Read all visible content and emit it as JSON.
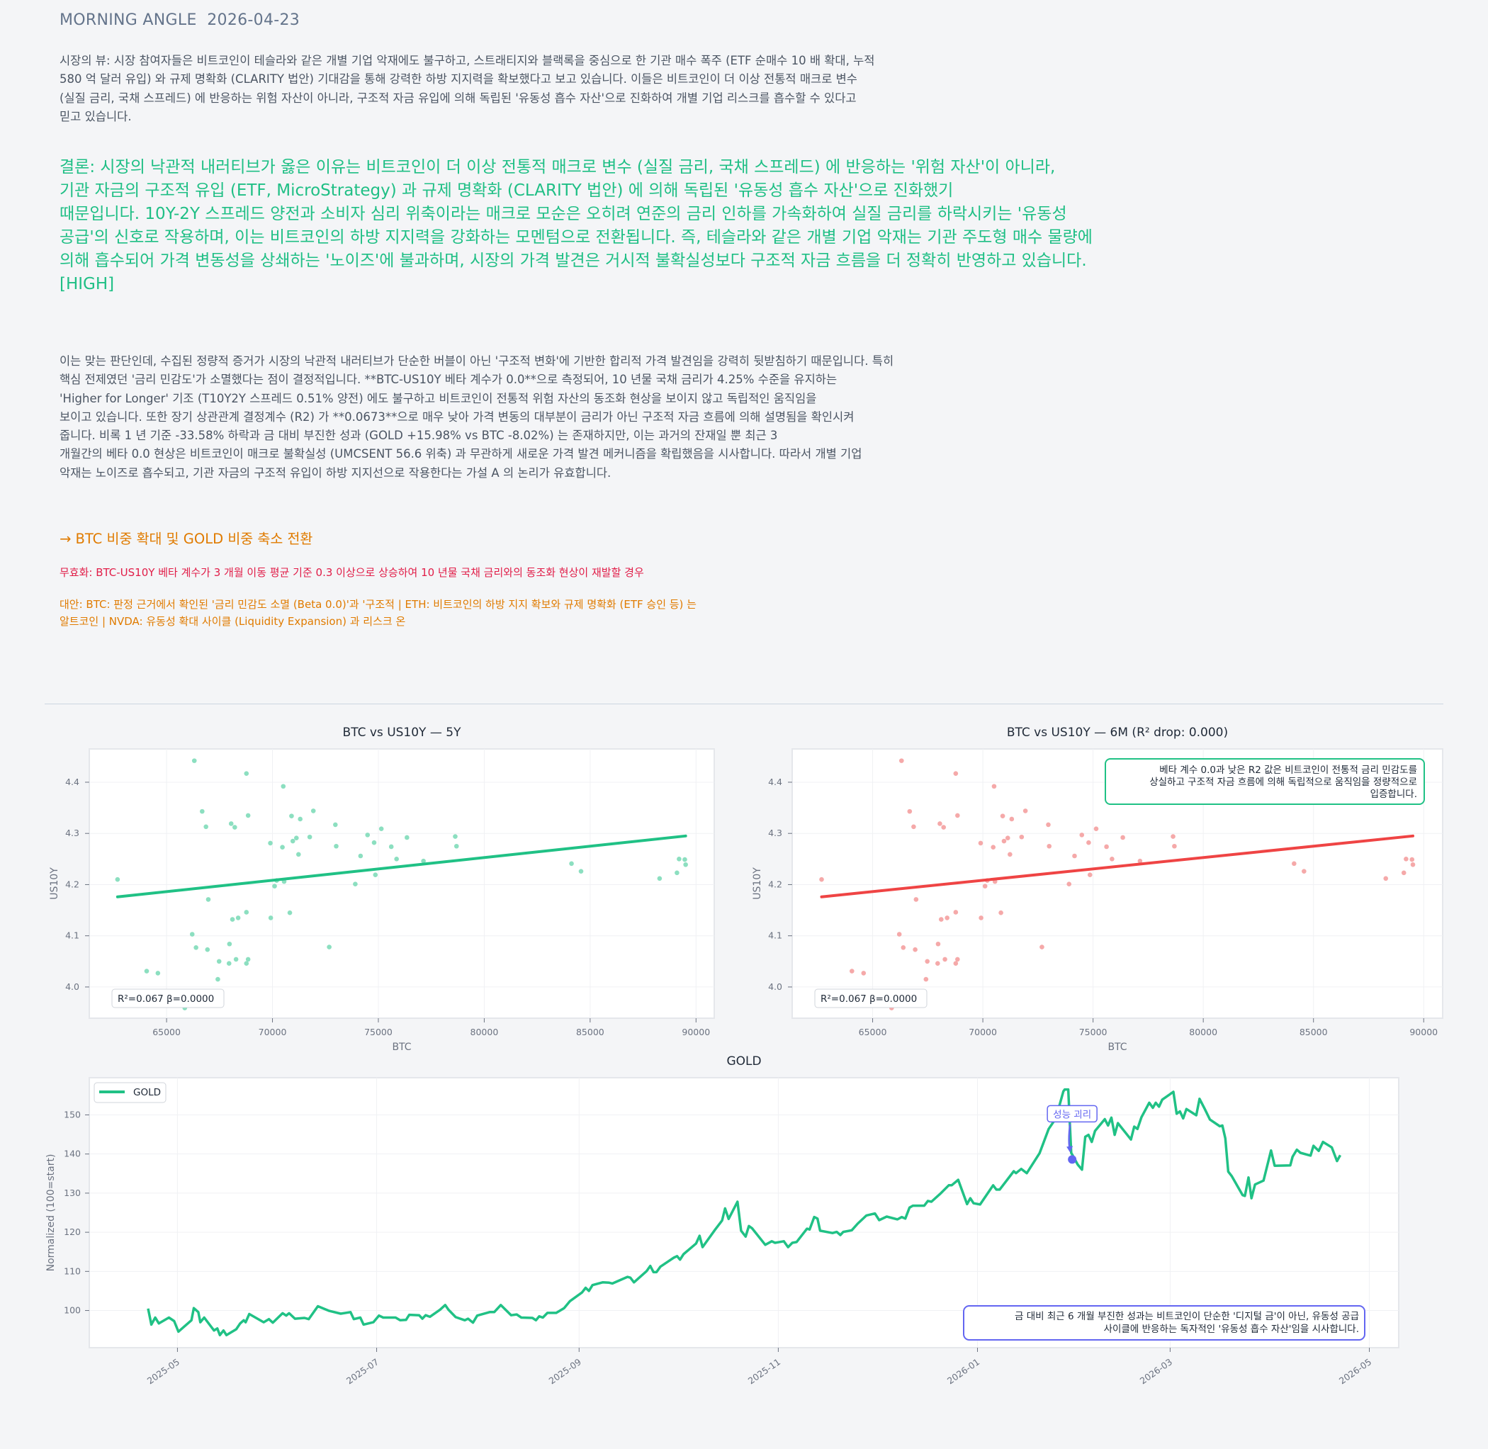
{
  "header": {
    "title": "MORNING ANGLE  2026-04-23"
  },
  "market_view": {
    "lines": [
      "시장의 뷰: 시장 참여자들은 비트코인이 테슬라와 같은 개별 기업 악재에도 불구하고, 스트래티지와 블랙록을 중심으로 한 기관 매수 폭주 (ETF 순매수 10 배 확대, 누적",
      "580 억 달러 유입) 와 규제 명확화 (CLARITY 법안) 기대감을 통해 강력한 하방 지지력을 확보했다고 보고 있습니다. 이들은 비트코인이 더 이상 전통적 매크로 변수",
      "(실질 금리, 국채 스프레드) 에 반응하는 위험 자산이 아니라, 구조적 자금 유입에 의해 독립된 '유동성 흡수 자산'으로 진화하여 개별 기업 리스크를 흡수할 수 있다고",
      "믿고 있습니다."
    ]
  },
  "conclusion": {
    "lines": [
      "결론: 시장의 낙관적 내러티브가 옳은 이유는 비트코인이 더 이상 전통적 매크로 변수 (실질 금리, 국채 스프레드) 에 반응하는 '위험 자산'이 아니라,",
      "기관 자금의 구조적 유입 (ETF, MicroStrategy) 과 규제 명확화 (CLARITY 법안) 에 의해 독립된 '유동성 흡수 자산'으로 진화했기",
      "때문입니다. 10Y-2Y 스프레드 양전과 소비자 심리 위축이라는 매크로 모순은 오히려 연준의 금리 인하를 가속화하여 실질 금리를 하락시키는 '유동성",
      "공급'의 신호로 작용하며, 이는 비트코인의 하방 지지력을 강화하는 모멘텀으로 전환됩니다. 즉, 테슬라와 같은 개별 기업 악재는 기관 주도형 매수 물량에",
      "의해 흡수되어 가격 변동성을 상쇄하는 '노이즈'에 불과하며, 시장의 가격 발견은 거시적 불확실성보다 구조적 자금 흐름을 더 정확히 반영하고 있습니다.",
      "[HIGH]"
    ]
  },
  "evidence": {
    "lines": [
      "이는 맞는 판단인데, 수집된 정량적 증거가 시장의 낙관적 내러티브가 단순한 버블이 아닌 '구조적 변화'에 기반한 합리적 가격 발견임을 강력히 뒷받침하기 때문입니다. 특히",
      "핵심 전제였던 '금리 민감도'가 소멸했다는 점이 결정적입니다. **BTC-US10Y 베타 계수가 0.0**으로 측정되어, 10 년물 국채 금리가 4.25% 수준을 유지하는",
      "'Higher for Longer' 기조 (T10Y2Y 스프레드 0.51% 양전) 에도 불구하고 비트코인이 전통적 위험 자산의 동조화 현상을 보이지 않고 독립적인 움직임을",
      "보이고 있습니다. 또한 장기 상관관계 결정계수 (R2) 가 **0.0673**으로 매우 낮아 가격 변동의 대부분이 금리가 아닌 구조적 자금 흐름에 의해 설명됨을 확인시켜",
      "줍니다. 비록 1 년 기준 -33.58% 하락과 금 대비 부진한 성과 (GOLD +15.98% vs BTC -8.02%) 는 존재하지만, 이는 과거의 잔재일 뿐 최근 3",
      "개월간의 베타 0.0 현상은 비트코인이 매크로 불확실성 (UMCSENT 56.6 위축) 과 무관하게 새로운 가격 발견 메커니즘을 확립했음을 시사합니다. 따라서 개별 기업",
      "악재는 노이즈로 흡수되고, 기관 자금의 구조적 유입이 하방 지지선으로 작용한다는 가설 A 의 논리가 유효합니다."
    ]
  },
  "action": "→ BTC 비중 확대 및 GOLD 비중 축소 전환",
  "invalidation": "무효화: BTC-US10Y 베타 계수가 3 개월 이동 평균 기준 0.3 이상으로 상승하여 10 년물 국채 금리와의 동조화 현상이 재발할 경우",
  "alternatives": {
    "lines": [
      "대안: BTC: 판정 근거에서 확인된 '금리 민감도 소멸 (Beta 0.0)'과 '구조적 | ETH: 비트코인의 하방 지지 확보와 규제 명확화 (ETF 승인 등) 는",
      "알트코인 | NVDA: 유동성 확대 사이클 (Liquidity Expansion) 과 리스크 온"
    ]
  },
  "colors": {
    "green": "#20c185",
    "green_point": "#7fdcb9",
    "red": "#ef4444",
    "red_point": "#f4a0a0",
    "purple": "#6366f1"
  },
  "chart_data": [
    {
      "type": "scatter",
      "title": "BTC vs US10Y — 5Y",
      "xlabel": "BTC",
      "ylabel": "US10Y",
      "xlim": [
        61350,
        90860
      ],
      "ylim": [
        3.939,
        4.465
      ],
      "xticks": [
        "65000",
        "70000",
        "75000",
        "80000",
        "85000",
        "90000"
      ],
      "yticks": [
        "4.0",
        "4.1",
        "4.2",
        "4.3",
        "4.4"
      ],
      "stats_label": "R²=0.067  β=0.0000",
      "fit_line": [
        [
          62684,
          4.176
        ],
        [
          89510,
          4.295
        ]
      ],
      "points": [
        [
          62684,
          4.21
        ],
        [
          66310,
          4.442
        ],
        [
          68770,
          4.417
        ],
        [
          70510,
          4.392
        ],
        [
          66680,
          4.343
        ],
        [
          68850,
          4.335
        ],
        [
          66860,
          4.313
        ],
        [
          68050,
          4.319
        ],
        [
          68220,
          4.312
        ],
        [
          71930,
          4.344
        ],
        [
          70900,
          4.334
        ],
        [
          71310,
          4.328
        ],
        [
          72970,
          4.317
        ],
        [
          75140,
          4.309
        ],
        [
          69900,
          4.281
        ],
        [
          70470,
          4.273
        ],
        [
          70960,
          4.285
        ],
        [
          71130,
          4.291
        ],
        [
          71760,
          4.293
        ],
        [
          71230,
          4.259
        ],
        [
          73010,
          4.275
        ],
        [
          74490,
          4.297
        ],
        [
          74800,
          4.282
        ],
        [
          75610,
          4.274
        ],
        [
          76350,
          4.292
        ],
        [
          74160,
          4.256
        ],
        [
          75860,
          4.25
        ],
        [
          77130,
          4.246
        ],
        [
          78630,
          4.294
        ],
        [
          78690,
          4.275
        ],
        [
          74860,
          4.219
        ],
        [
          73910,
          4.201
        ],
        [
          70100,
          4.197
        ],
        [
          70200,
          4.208
        ],
        [
          70550,
          4.206
        ],
        [
          84120,
          4.241
        ],
        [
          84570,
          4.226
        ],
        [
          88280,
          4.212
        ],
        [
          89100,
          4.223
        ],
        [
          89200,
          4.25
        ],
        [
          89470,
          4.249
        ],
        [
          89510,
          4.239
        ],
        [
          66970,
          4.171
        ],
        [
          68770,
          4.146
        ],
        [
          68110,
          4.132
        ],
        [
          68380,
          4.135
        ],
        [
          69920,
          4.135
        ],
        [
          70820,
          4.145
        ],
        [
          66210,
          4.103
        ],
        [
          66390,
          4.077
        ],
        [
          66930,
          4.073
        ],
        [
          67970,
          4.084
        ],
        [
          72680,
          4.078
        ],
        [
          67480,
          4.05
        ],
        [
          67950,
          4.046
        ],
        [
          68280,
          4.054
        ],
        [
          68770,
          4.046
        ],
        [
          68850,
          4.054
        ],
        [
          64060,
          4.031
        ],
        [
          64590,
          4.027
        ],
        [
          67420,
          4.015
        ],
        [
          65860,
          3.959
        ]
      ]
    },
    {
      "type": "scatter",
      "title": "BTC vs US10Y — 6M (R² drop: 0.000)",
      "xlabel": "BTC",
      "ylabel": "US10Y",
      "xlim": [
        61350,
        90860
      ],
      "ylim": [
        3.939,
        4.465
      ],
      "xticks": [
        "65000",
        "70000",
        "75000",
        "80000",
        "85000",
        "90000"
      ],
      "yticks": [
        "4.0",
        "4.1",
        "4.2",
        "4.3",
        "4.4"
      ],
      "stats_label": "R²=0.067  β=0.0000",
      "annotation": [
        "베타 계수 0.0과 낮은 R2 값은 비트코인이 전통적 금리 민감도를",
        "상실하고 구조적 자금 흐름에 의해 독립적으로 움직임을 정량적으로",
        "입증합니다."
      ],
      "fit_line": [
        [
          62684,
          4.176
        ],
        [
          89510,
          4.295
        ]
      ],
      "points_same_as": "chart 1"
    },
    {
      "type": "line",
      "title": "GOLD",
      "ylabel": "Normalized (100=start)",
      "legend": [
        "GOLD"
      ],
      "legend_position": "top-left",
      "x_start_date": "2025-04-22",
      "x_unit": "days since start",
      "xlim": [
        -18,
        383
      ],
      "ylim": [
        90.5,
        159.5
      ],
      "xticks": [
        {
          "day": 9,
          "label": "2025-05"
        },
        {
          "day": 70,
          "label": "2025-07"
        },
        {
          "day": 132,
          "label": "2025-09"
        },
        {
          "day": 193,
          "label": "2025-11"
        },
        {
          "day": 254,
          "label": "2026-01"
        },
        {
          "day": 313,
          "label": "2026-03"
        },
        {
          "day": 374,
          "label": "2026-05"
        }
      ],
      "yticks": [
        "100",
        "110",
        "120",
        "130",
        "140",
        "150"
      ],
      "marker": {
        "label": "성능 괴리",
        "day": 283,
        "value": 138.6
      },
      "annotation": [
        "금 대비 최근 6 개월 부진한 성과는 비트코인이 단순한 '디지털 금'이 아닌, 유동성 공급",
        "사이클에 반응하는 독자적인 '유동성 흡수 자산'임을 시사합니다."
      ],
      "series": [
        [
          0,
          100.5
        ],
        [
          1,
          96.4
        ],
        [
          2.2,
          98.2
        ],
        [
          3.3,
          96.7
        ],
        [
          6.4,
          98.2
        ],
        [
          8,
          97.3
        ],
        [
          9.3,
          94.6
        ],
        [
          13.3,
          97.5
        ],
        [
          14,
          100.6
        ],
        [
          15.4,
          99.6
        ],
        [
          16,
          97.0
        ],
        [
          17.2,
          98.2
        ],
        [
          20.2,
          94.9
        ],
        [
          21.2,
          95.4
        ],
        [
          22,
          93.7
        ],
        [
          23.1,
          94.9
        ],
        [
          24,
          93.7
        ],
        [
          27,
          95.2
        ],
        [
          28.2,
          96.7
        ],
        [
          29.3,
          97.5
        ],
        [
          29.9,
          97.0
        ],
        [
          31,
          99.1
        ],
        [
          35.4,
          97.0
        ],
        [
          37,
          97.8
        ],
        [
          38.2,
          96.9
        ],
        [
          41.2,
          99.3
        ],
        [
          42.3,
          98.7
        ],
        [
          43.2,
          99.3
        ],
        [
          45,
          97.9
        ],
        [
          47.9,
          98.1
        ],
        [
          49.2,
          97.8
        ],
        [
          52,
          101.1
        ],
        [
          55.5,
          99.9
        ],
        [
          59,
          99.2
        ],
        [
          62,
          99.6
        ],
        [
          63,
          97.8
        ],
        [
          65,
          98.2
        ],
        [
          66,
          96.4
        ],
        [
          69,
          97.0
        ],
        [
          70.7,
          98.7
        ],
        [
          72,
          98.2
        ],
        [
          75.8,
          98.2
        ],
        [
          77.2,
          97.5
        ],
        [
          79,
          97.6
        ],
        [
          80,
          98.9
        ],
        [
          83,
          98.8
        ],
        [
          84,
          97.9
        ],
        [
          85,
          98.8
        ],
        [
          86.3,
          98.4
        ],
        [
          89.4,
          100.2
        ],
        [
          91,
          101.4
        ],
        [
          92,
          100.2
        ],
        [
          94.2,
          98.3
        ],
        [
          97,
          97.5
        ],
        [
          98,
          97.9
        ],
        [
          99.5,
          96.9
        ],
        [
          100.8,
          98.7
        ],
        [
          104.6,
          99.6
        ],
        [
          106,
          99.6
        ],
        [
          108,
          101.4
        ],
        [
          111.2,
          98.8
        ],
        [
          112.9,
          99.0
        ],
        [
          114.3,
          98.2
        ],
        [
          117.7,
          98.1
        ],
        [
          118.8,
          97.5
        ],
        [
          119.8,
          98.5
        ],
        [
          120.9,
          98.2
        ],
        [
          122.3,
          99.4
        ],
        [
          125,
          99.4
        ],
        [
          127.4,
          100.6
        ],
        [
          129.2,
          102.4
        ],
        [
          132.9,
          104.6
        ],
        [
          134,
          105.8
        ],
        [
          135,
          105.0
        ],
        [
          136.1,
          106.5
        ],
        [
          139.2,
          107.2
        ],
        [
          141.2,
          107.1
        ],
        [
          142.2,
          106.9
        ],
        [
          146.8,
          108.6
        ],
        [
          147.7,
          108.4
        ],
        [
          148.8,
          107.2
        ],
        [
          152.7,
          110.1
        ],
        [
          153.8,
          111.4
        ],
        [
          154.8,
          109.8
        ],
        [
          155.7,
          109.8
        ],
        [
          156.9,
          111.2
        ],
        [
          161,
          113.5
        ],
        [
          162,
          113.9
        ],
        [
          162.9,
          113.0
        ],
        [
          164,
          114.4
        ],
        [
          167.8,
          117.1
        ],
        [
          168.9,
          119.1
        ],
        [
          169.8,
          116.2
        ],
        [
          173.7,
          120.7
        ],
        [
          175.8,
          123.0
        ],
        [
          176.7,
          126.1
        ],
        [
          177.8,
          123.4
        ],
        [
          180.5,
          127.8
        ],
        [
          181.6,
          120.4
        ],
        [
          183,
          118.9
        ],
        [
          184,
          121.6
        ],
        [
          185,
          121.0
        ],
        [
          189,
          116.8
        ],
        [
          191,
          117.7
        ],
        [
          192,
          117.3
        ],
        [
          194.7,
          117.7
        ],
        [
          196,
          116.2
        ],
        [
          197.3,
          117.3
        ],
        [
          198.6,
          117.5
        ],
        [
          201.8,
          120.9
        ],
        [
          202.6,
          120.7
        ],
        [
          204,
          123.9
        ],
        [
          205,
          123.5
        ],
        [
          205.8,
          120.4
        ],
        [
          209.6,
          119.8
        ],
        [
          210.9,
          120.1
        ],
        [
          212,
          119.3
        ],
        [
          212.9,
          120.1
        ],
        [
          215.5,
          120.5
        ],
        [
          217.3,
          122.2
        ],
        [
          220,
          124.3
        ],
        [
          222.6,
          124.8
        ],
        [
          223.9,
          123.1
        ],
        [
          226.2,
          124.0
        ],
        [
          229.5,
          123.3
        ],
        [
          230.8,
          123.9
        ],
        [
          231.9,
          123.5
        ],
        [
          233.2,
          126.3
        ],
        [
          234.2,
          126.8
        ],
        [
          237.7,
          126.8
        ],
        [
          238.8,
          128.0
        ],
        [
          239.9,
          127.8
        ],
        [
          242.8,
          130.0
        ],
        [
          245.2,
          132.0
        ],
        [
          246.1,
          132.0
        ],
        [
          248.1,
          133.4
        ],
        [
          250.8,
          127.2
        ],
        [
          251.8,
          128.7
        ],
        [
          252.8,
          127.4
        ],
        [
          254.8,
          127.1
        ],
        [
          258.8,
          132.0
        ],
        [
          259.8,
          130.9
        ],
        [
          260.8,
          130.9
        ],
        [
          265.1,
          135.6
        ],
        [
          265.8,
          135.1
        ],
        [
          267.4,
          136.2
        ],
        [
          269.1,
          135.1
        ],
        [
          273,
          140.2
        ],
        [
          275.8,
          146.4
        ],
        [
          278,
          149.1
        ],
        [
          280.3,
          156.0
        ],
        [
          280.7,
          156.5
        ],
        [
          281.8,
          156.5
        ],
        [
          282.7,
          140.3
        ],
        [
          284.7,
          137.3
        ],
        [
          286,
          136.0
        ],
        [
          287,
          144.4
        ],
        [
          288,
          144.9
        ],
        [
          289,
          143.1
        ],
        [
          290,
          145.9
        ],
        [
          293,
          148.9
        ],
        [
          294,
          147.3
        ],
        [
          295,
          149.3
        ],
        [
          296,
          144.9
        ],
        [
          297,
          147.9
        ],
        [
          301,
          143.7
        ],
        [
          302,
          147.0
        ],
        [
          303,
          146.4
        ],
        [
          304.2,
          149.4
        ],
        [
          306.6,
          153.1
        ],
        [
          307.7,
          151.8
        ],
        [
          308.6,
          153.1
        ],
        [
          309.6,
          152.1
        ],
        [
          310.6,
          153.9
        ],
        [
          314,
          155.9
        ],
        [
          315,
          150.3
        ],
        [
          316,
          150.9
        ],
        [
          317,
          149.1
        ],
        [
          318,
          151.5
        ],
        [
          321,
          149.9
        ],
        [
          322,
          154.1
        ],
        [
          323.6,
          151.5
        ],
        [
          325.2,
          148.8
        ],
        [
          328.2,
          147.1
        ],
        [
          329,
          147.3
        ],
        [
          329.9,
          144.0
        ],
        [
          330.8,
          135.5
        ],
        [
          331.9,
          134.3
        ],
        [
          335.2,
          129.5
        ],
        [
          335.9,
          129.3
        ],
        [
          337,
          134.0
        ],
        [
          337.9,
          128.7
        ],
        [
          339,
          132.2
        ],
        [
          341.6,
          133.2
        ],
        [
          343.9,
          140.9
        ],
        [
          345,
          137.0
        ],
        [
          349.8,
          137.1
        ],
        [
          350.5,
          139.3
        ],
        [
          351.8,
          141.1
        ],
        [
          352.9,
          140.3
        ],
        [
          356,
          139.6
        ],
        [
          356.9,
          142.1
        ],
        [
          358.5,
          140.8
        ],
        [
          359.8,
          143.1
        ],
        [
          362.5,
          141.7
        ],
        [
          364.1,
          138.2
        ],
        [
          365.1,
          139.7
        ]
      ]
    }
  ]
}
